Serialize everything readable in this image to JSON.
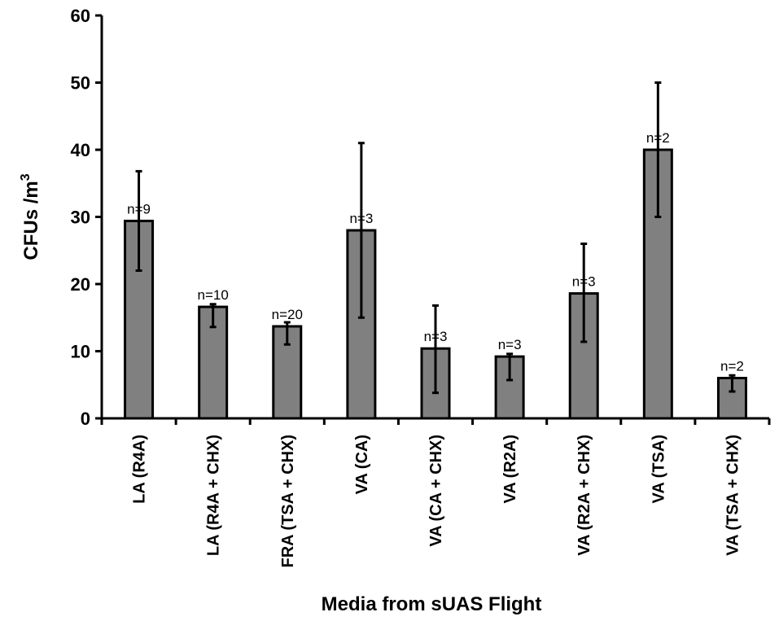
{
  "chart_data": {
    "type": "bar",
    "title": "",
    "xlabel": "Media from sUAS Flight",
    "ylabel": "CFUs /m",
    "ylabel_superscript": "3",
    "ylim": [
      0,
      60
    ],
    "yticks": [
      0,
      10,
      20,
      30,
      40,
      50,
      60
    ],
    "grid": false,
    "legend": "none",
    "bar_color": "#808080",
    "categories": [
      "LA (R4A)",
      "LA (R4A + CHX)",
      "FRA (TSA + CHX)",
      "VA (CA)",
      "VA (CA + CHX)",
      "VA (R2A)",
      "VA (R2A + CHX)",
      "VA (TSA)",
      "VA (TSA + CHX)"
    ],
    "values": [
      29.4,
      16.6,
      13.7,
      28.0,
      10.4,
      9.2,
      18.6,
      40.0,
      6.0
    ],
    "error_low": [
      22.0,
      13.6,
      11.0,
      15.0,
      3.8,
      5.7,
      11.4,
      30.0,
      4.0
    ],
    "error_high": [
      36.8,
      17.0,
      14.3,
      41.0,
      16.8,
      9.6,
      26.0,
      50.0,
      6.4
    ],
    "n_labels": [
      "n=9",
      "n=10",
      "n=20",
      "n=3",
      "n=3",
      "n=3",
      "n=3",
      "n=2",
      "n=2"
    ]
  }
}
